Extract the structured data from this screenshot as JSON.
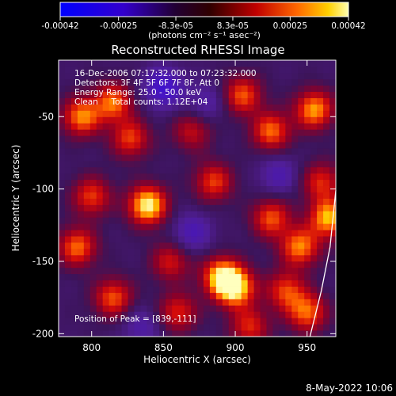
{
  "chart_data": {
    "type": "heatmap",
    "title": "Reconstructed RHESSI Image",
    "xlabel": "Heliocentric X (arcsec)",
    "ylabel": "Heliocentric Y (arcsec)",
    "xlim": [
      777,
      970
    ],
    "ylim": [
      -202,
      -11
    ],
    "x_ticks": [
      800,
      850,
      900,
      950
    ],
    "y_ticks": [
      -50,
      -100,
      -150,
      -200
    ],
    "x_tick_labels": [
      "800",
      "850",
      "900",
      "950"
    ],
    "y_tick_labels": [
      "-50",
      "-100",
      "-150",
      "-200"
    ],
    "colorbar": {
      "range": [
        -0.00042,
        0.00042
      ],
      "tick_labels": [
        "-0.00042",
        "-0.00025",
        "-8.3e-05",
        "8.3e-05",
        "0.00025",
        "0.00042"
      ],
      "unit_label": "(photons cm⁻² s⁻¹ asec⁻²)"
    },
    "annotations": [
      "16-Dec-2006 07:17:32.000 to 07:23:32.000",
      "Detectors: 3F 4F 5F 6F 7F 8F, Att 0",
      "Energy Range: 25.0 - 50.0 keV",
      "Clean     Total counts: 1.12E+04"
    ],
    "peak_label": "Position of Peak = [839,-111]",
    "peak": [
      839,
      -111
    ],
    "hot_spots": [
      {
        "x": 839,
        "y": -111,
        "v": 1.0
      },
      {
        "x": 900,
        "y": -168,
        "v": 0.95
      },
      {
        "x": 965,
        "y": -120,
        "v": 0.85
      },
      {
        "x": 890,
        "y": -160,
        "v": 0.8
      },
      {
        "x": 793,
        "y": -50,
        "v": 0.75
      },
      {
        "x": 815,
        "y": -40,
        "v": 0.7
      },
      {
        "x": 827,
        "y": -65,
        "v": 0.6
      },
      {
        "x": 955,
        "y": -45,
        "v": 0.8
      },
      {
        "x": 925,
        "y": -60,
        "v": 0.7
      },
      {
        "x": 905,
        "y": -35,
        "v": 0.65
      },
      {
        "x": 885,
        "y": -95,
        "v": 0.6
      },
      {
        "x": 925,
        "y": -120,
        "v": 0.65
      },
      {
        "x": 945,
        "y": -140,
        "v": 0.75
      },
      {
        "x": 790,
        "y": -140,
        "v": 0.7
      },
      {
        "x": 800,
        "y": -105,
        "v": 0.6
      },
      {
        "x": 815,
        "y": -175,
        "v": 0.65
      },
      {
        "x": 860,
        "y": -185,
        "v": 0.55
      },
      {
        "x": 950,
        "y": -185,
        "v": 0.7
      },
      {
        "x": 935,
        "y": -170,
        "v": 0.6
      },
      {
        "x": 855,
        "y": -150,
        "v": 0.5
      },
      {
        "x": 870,
        "y": -60,
        "v": 0.45
      },
      {
        "x": 910,
        "y": -195,
        "v": 0.55
      },
      {
        "x": 960,
        "y": -95,
        "v": 0.55
      }
    ],
    "cold_spots": [
      {
        "x": 850,
        "y": -30,
        "v": -0.6
      },
      {
        "x": 870,
        "y": -130,
        "v": -0.4
      },
      {
        "x": 930,
        "y": -90,
        "v": -0.35
      },
      {
        "x": 835,
        "y": -195,
        "v": -0.3
      },
      {
        "x": 880,
        "y": -40,
        "v": -0.3
      }
    ],
    "limb": [
      [
        970,
        -101
      ],
      [
        966,
        -140
      ],
      [
        960,
        -170
      ],
      [
        952,
        -202
      ]
    ]
  },
  "footer": {
    "date": "8-May-2022 10:06"
  }
}
